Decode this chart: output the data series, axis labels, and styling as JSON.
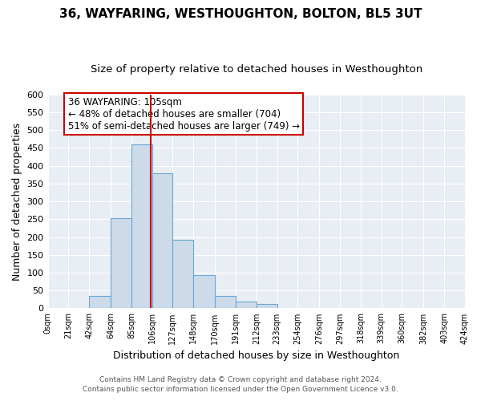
{
  "title": "36, WAYFARING, WESTHOUGHTON, BOLTON, BL5 3UT",
  "subtitle": "Size of property relative to detached houses in Westhoughton",
  "xlabel": "Distribution of detached houses by size in Westhoughton",
  "ylabel": "Number of detached properties",
  "bar_edges": [
    0,
    21,
    42,
    64,
    85,
    106,
    127,
    148,
    170,
    191,
    212,
    233,
    254,
    276,
    297,
    318,
    339,
    360,
    382,
    403,
    424
  ],
  "bar_heights": [
    0,
    0,
    35,
    252,
    460,
    380,
    192,
    93,
    35,
    20,
    12,
    0,
    0,
    0,
    0,
    0,
    0,
    0,
    0,
    0
  ],
  "bar_color": "#ccdaea",
  "bar_edge_color": "#6aaad4",
  "vline_x": 105,
  "vline_color": "#cc0000",
  "ylim": [
    0,
    600
  ],
  "yticks": [
    0,
    50,
    100,
    150,
    200,
    250,
    300,
    350,
    400,
    450,
    500,
    550,
    600
  ],
  "xtick_labels": [
    "0sqm",
    "21sqm",
    "42sqm",
    "64sqm",
    "85sqm",
    "106sqm",
    "127sqm",
    "148sqm",
    "170sqm",
    "191sqm",
    "212sqm",
    "233sqm",
    "254sqm",
    "276sqm",
    "297sqm",
    "318sqm",
    "339sqm",
    "360sqm",
    "382sqm",
    "403sqm",
    "424sqm"
  ],
  "annotation_title": "36 WAYFARING: 105sqm",
  "annotation_line1": "← 48% of detached houses are smaller (704)",
  "annotation_line2": "51% of semi-detached houses are larger (749) →",
  "annotation_box_color": "#ffffff",
  "annotation_box_edge_color": "#cc0000",
  "footer1": "Contains HM Land Registry data © Crown copyright and database right 2024.",
  "footer2": "Contains public sector information licensed under the Open Government Licence v3.0.",
  "fig_bg_color": "#ffffff",
  "plot_bg_color": "#e8eef4",
  "grid_color": "#ffffff",
  "title_fontsize": 11,
  "subtitle_fontsize": 9.5
}
